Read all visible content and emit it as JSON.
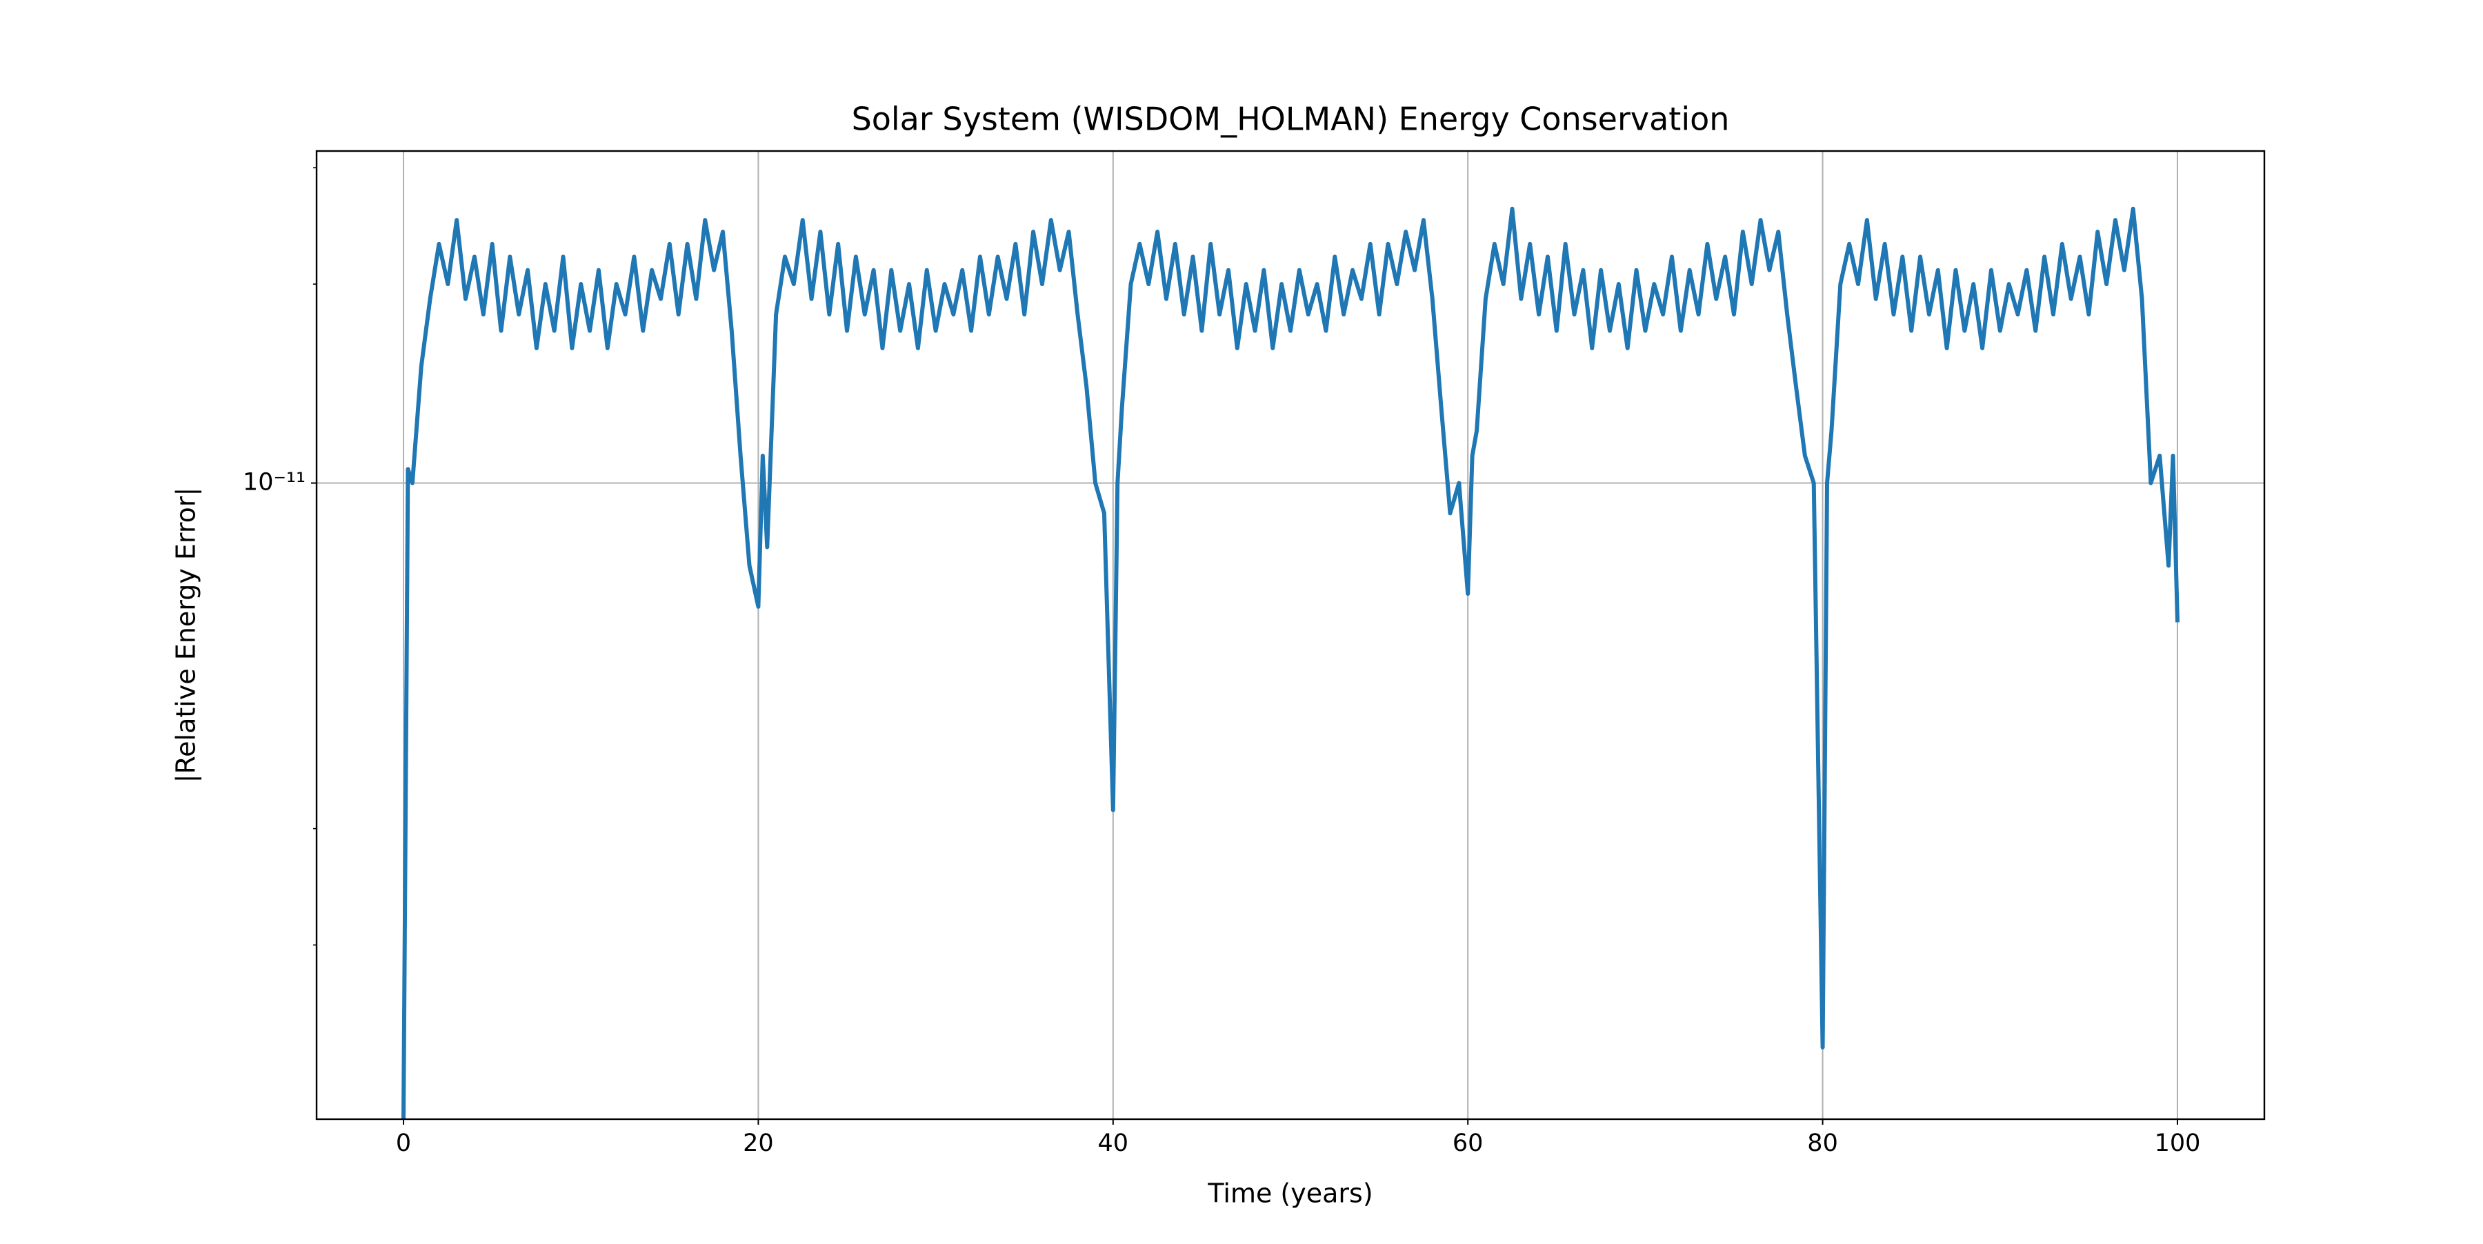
{
  "chart_data": {
    "type": "line",
    "title": "Solar System (WISDOM_HOLMAN) Energy Conservation",
    "xlabel": "Time (years)",
    "ylabel": "|Relative Energy Error|",
    "yscale": "log",
    "grid": true,
    "color": "#1f77b4",
    "xlim": [
      -4.9,
      104.9
    ],
    "xticks": [
      0,
      20,
      40,
      60,
      80,
      100
    ],
    "ylim": [
      1.09e-12,
      3.18e-11
    ],
    "yticks": [
      {
        "value": 1e-11,
        "label": "10⁻¹¹"
      }
    ],
    "yminorticks": [
      2e-12,
      3e-12,
      2e-11,
      3e-11
    ],
    "x": [
      0,
      0.25,
      0.5,
      1,
      1.5,
      2,
      2.5,
      3,
      3.5,
      4,
      4.5,
      5,
      5.5,
      6,
      6.5,
      7,
      7.5,
      8,
      8.5,
      9,
      9.5,
      10,
      10.5,
      11,
      11.5,
      12,
      12.5,
      13,
      13.5,
      14,
      14.5,
      15,
      15.5,
      16,
      16.5,
      17,
      17.5,
      18,
      18.5,
      19,
      19.5,
      20,
      20.25,
      20.5,
      21,
      21.5,
      22,
      22.5,
      23,
      23.5,
      24,
      24.5,
      25,
      25.5,
      26,
      26.5,
      27,
      27.5,
      28,
      28.5,
      29,
      29.5,
      30,
      30.5,
      31,
      31.5,
      32,
      32.5,
      33,
      33.5,
      34,
      34.5,
      35,
      35.5,
      36,
      36.5,
      37,
      37.5,
      38,
      38.5,
      39,
      39.5,
      40,
      40.25,
      40.5,
      41,
      41.5,
      42,
      42.5,
      43,
      43.5,
      44,
      44.5,
      45,
      45.5,
      46,
      46.5,
      47,
      47.5,
      48,
      48.5,
      49,
      49.5,
      50,
      50.5,
      51,
      51.5,
      52,
      52.5,
      53,
      53.5,
      54,
      54.5,
      55,
      55.5,
      56,
      56.5,
      57,
      57.5,
      58,
      58.5,
      59,
      59.5,
      60,
      60.25,
      60.5,
      61,
      61.5,
      62,
      62.5,
      63,
      63.5,
      64,
      64.5,
      65,
      65.5,
      66,
      66.5,
      67,
      67.5,
      68,
      68.5,
      69,
      69.5,
      70,
      70.5,
      71,
      71.5,
      72,
      72.5,
      73,
      73.5,
      74,
      74.5,
      75,
      75.5,
      76,
      76.5,
      77,
      77.5,
      78,
      78.5,
      79,
      79.5,
      80,
      80.25,
      80.5,
      81,
      81.5,
      82,
      82.5,
      83,
      83.5,
      84,
      84.5,
      85,
      85.5,
      86,
      86.5,
      87,
      87.5,
      88,
      88.5,
      89,
      89.5,
      90,
      90.5,
      91,
      91.5,
      92,
      92.5,
      93,
      93.5,
      94,
      94.5,
      95,
      95.5,
      96,
      96.5,
      97,
      97.5,
      98,
      98.5,
      99,
      99.5,
      99.75,
      100
    ],
    "values": [
      1.1e-12,
      1.05e-11,
      1e-11,
      1.5e-11,
      1.9e-11,
      2.3e-11,
      2e-11,
      2.5e-11,
      1.9e-11,
      2.2e-11,
      1.8e-11,
      2.3e-11,
      1.7e-11,
      2.2e-11,
      1.8e-11,
      2.1e-11,
      1.6e-11,
      2e-11,
      1.7e-11,
      2.2e-11,
      1.6e-11,
      2e-11,
      1.7e-11,
      2.1e-11,
      1.6e-11,
      2e-11,
      1.8e-11,
      2.2e-11,
      1.7e-11,
      2.1e-11,
      1.9e-11,
      2.3e-11,
      1.8e-11,
      2.3e-11,
      1.9e-11,
      2.5e-11,
      2.1e-11,
      2.4e-11,
      1.7e-11,
      1.1e-11,
      7.5e-12,
      6.5e-12,
      1.1e-11,
      8e-12,
      1.8e-11,
      2.2e-11,
      2e-11,
      2.5e-11,
      1.9e-11,
      2.4e-11,
      1.8e-11,
      2.3e-11,
      1.7e-11,
      2.2e-11,
      1.8e-11,
      2.1e-11,
      1.6e-11,
      2.1e-11,
      1.7e-11,
      2e-11,
      1.6e-11,
      2.1e-11,
      1.7e-11,
      2e-11,
      1.8e-11,
      2.1e-11,
      1.7e-11,
      2.2e-11,
      1.8e-11,
      2.2e-11,
      1.9e-11,
      2.3e-11,
      1.8e-11,
      2.4e-11,
      2e-11,
      2.5e-11,
      2.1e-11,
      2.4e-11,
      1.8e-11,
      1.4e-11,
      1e-11,
      9e-12,
      3.2e-12,
      1e-11,
      1.3e-11,
      2e-11,
      2.3e-11,
      2e-11,
      2.4e-11,
      1.9e-11,
      2.3e-11,
      1.8e-11,
      2.2e-11,
      1.7e-11,
      2.3e-11,
      1.8e-11,
      2.1e-11,
      1.6e-11,
      2e-11,
      1.7e-11,
      2.1e-11,
      1.6e-11,
      2e-11,
      1.7e-11,
      2.1e-11,
      1.8e-11,
      2e-11,
      1.7e-11,
      2.2e-11,
      1.8e-11,
      2.1e-11,
      1.9e-11,
      2.3e-11,
      1.8e-11,
      2.3e-11,
      2e-11,
      2.4e-11,
      2.1e-11,
      2.5e-11,
      1.9e-11,
      1.3e-11,
      9e-12,
      1e-11,
      6.8e-12,
      1.1e-11,
      1.2e-11,
      1.9e-11,
      2.3e-11,
      2e-11,
      2.6e-11,
      1.9e-11,
      2.3e-11,
      1.8e-11,
      2.2e-11,
      1.7e-11,
      2.3e-11,
      1.8e-11,
      2.1e-11,
      1.6e-11,
      2.1e-11,
      1.7e-11,
      2e-11,
      1.6e-11,
      2.1e-11,
      1.7e-11,
      2e-11,
      1.8e-11,
      2.2e-11,
      1.7e-11,
      2.1e-11,
      1.8e-11,
      2.3e-11,
      1.9e-11,
      2.2e-11,
      1.8e-11,
      2.4e-11,
      2e-11,
      2.5e-11,
      2.1e-11,
      2.4e-11,
      1.8e-11,
      1.4e-11,
      1.1e-11,
      1e-11,
      1.4e-12,
      1e-11,
      1.2e-11,
      2e-11,
      2.3e-11,
      2e-11,
      2.5e-11,
      1.9e-11,
      2.3e-11,
      1.8e-11,
      2.2e-11,
      1.7e-11,
      2.2e-11,
      1.8e-11,
      2.1e-11,
      1.6e-11,
      2.1e-11,
      1.7e-11,
      2e-11,
      1.6e-11,
      2.1e-11,
      1.7e-11,
      2e-11,
      1.8e-11,
      2.1e-11,
      1.7e-11,
      2.2e-11,
      1.8e-11,
      2.3e-11,
      1.9e-11,
      2.2e-11,
      1.8e-11,
      2.4e-11,
      2e-11,
      2.5e-11,
      2.1e-11,
      2.6e-11,
      1.9e-11,
      1e-11,
      1.1e-11,
      7.5e-12,
      1.1e-11,
      6.2e-12
    ]
  }
}
